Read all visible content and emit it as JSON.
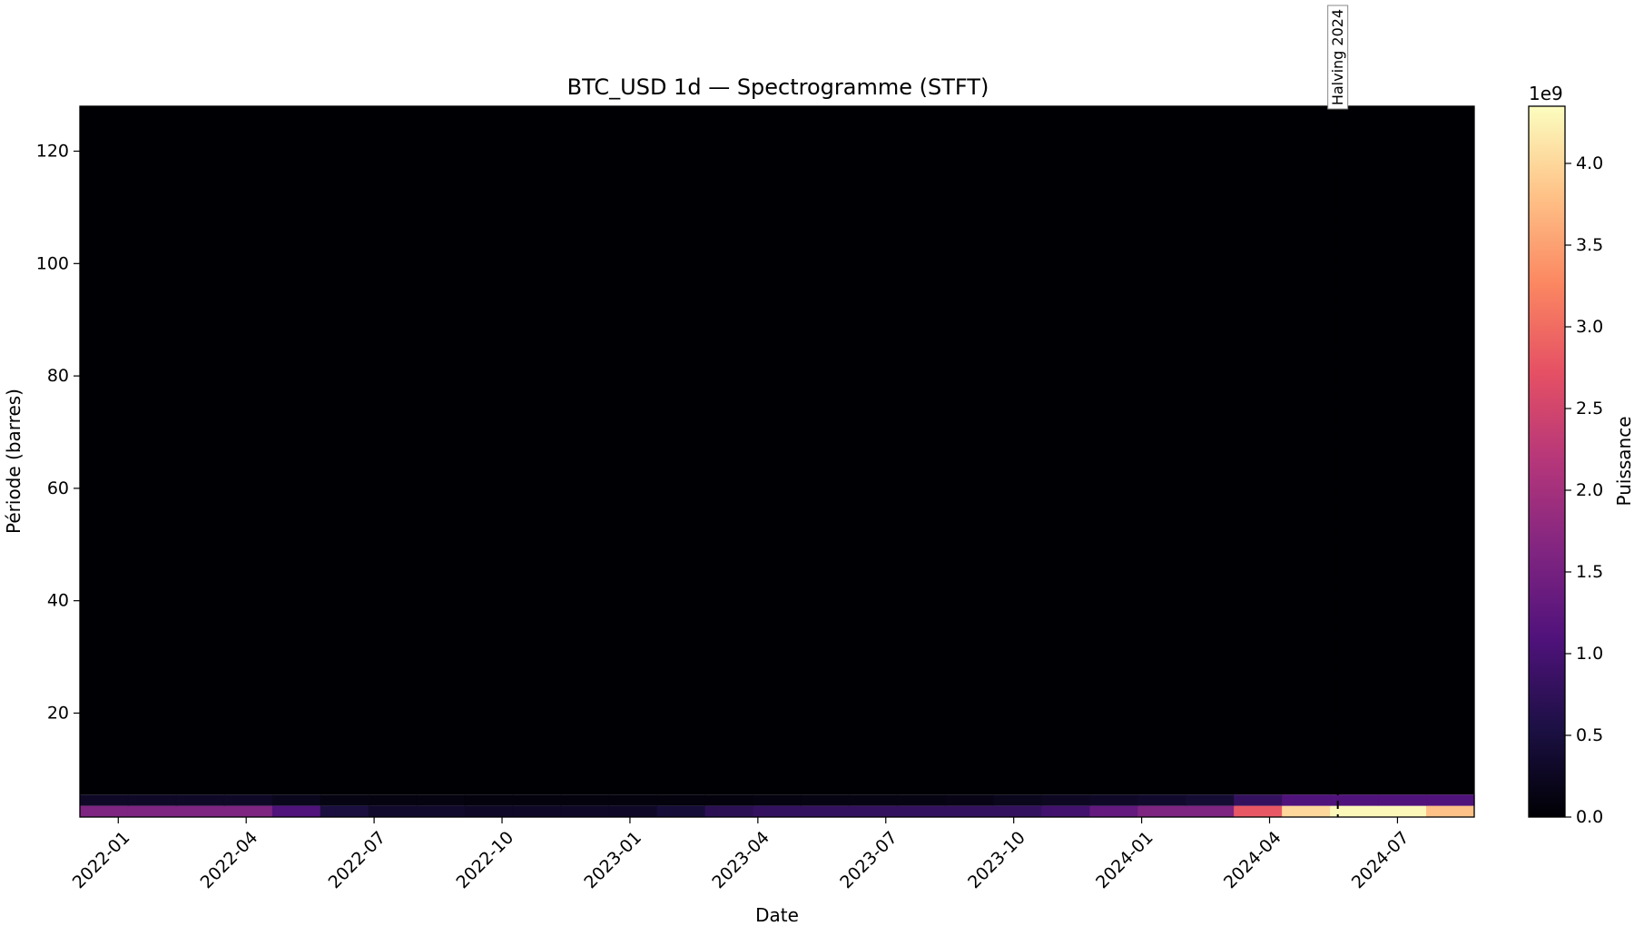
{
  "chart_data": {
    "type": "heatmap",
    "title": "BTC_USD 1d — Spectrogramme (STFT)",
    "xlabel": "Date",
    "ylabel": "Période (barres)",
    "x_tick_labels": [
      "2022-01",
      "2022-04",
      "2022-07",
      "2022-10",
      "2023-01",
      "2023-04",
      "2023-07",
      "2023-10",
      "2024-01",
      "2024-04",
      "2024-07"
    ],
    "y_ticks": [
      20,
      40,
      60,
      80,
      100,
      120
    ],
    "ylim": [
      1.5,
      128
    ],
    "colorbar": {
      "label": "Puissance",
      "multiplier": "1e9",
      "ticks": [
        "0.0",
        "0.5",
        "1.0",
        "1.5",
        "2.0",
        "2.5",
        "3.0",
        "3.5",
        "4.0"
      ],
      "tick_values": [
        0,
        0.5,
        1.0,
        1.5,
        2.0,
        2.5,
        3.0,
        3.5,
        4.0
      ],
      "range": [
        0,
        4.35
      ],
      "colormap": "magma"
    },
    "annotation": {
      "text": "Halving 2024",
      "x_month_index": 28.6
    },
    "x_month_range": [
      -0.9,
      31.8
    ],
    "time_bins_count": 29,
    "rows": [
      {
        "period_range": [
          1.5,
          3.5
        ],
        "values": [
          1.6,
          1.6,
          1.6,
          1.6,
          1.1,
          0.5,
          0.35,
          0.35,
          0.3,
          0.3,
          0.3,
          0.3,
          0.45,
          0.7,
          0.8,
          0.8,
          0.8,
          0.8,
          0.8,
          0.8,
          0.95,
          1.3,
          1.6,
          1.6,
          2.8,
          4.0,
          4.3,
          4.3,
          3.8
        ]
      },
      {
        "period_range": [
          3.5,
          5.5
        ],
        "values": [
          0.3,
          0.3,
          0.3,
          0.3,
          0.2,
          0.12,
          0.1,
          0.1,
          0.08,
          0.08,
          0.08,
          0.08,
          0.08,
          0.08,
          0.1,
          0.12,
          0.12,
          0.12,
          0.15,
          0.2,
          0.25,
          0.3,
          0.35,
          0.4,
          0.8,
          1.1,
          1.1,
          1.1,
          1.1
        ]
      },
      {
        "period_range": [
          5.5,
          128
        ],
        "values": [
          0.0
        ]
      }
    ]
  }
}
